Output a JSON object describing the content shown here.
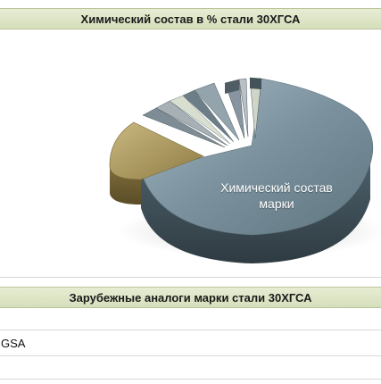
{
  "sections": {
    "composition_title": "Химический состав в % стали 30ХГСА",
    "analogs_title": "Зарубежные аналоги марки стали 30ХГСА"
  },
  "chart_data": {
    "type": "pie",
    "title": "Химический состав в % стали 30ХГСА",
    "slice_label": "Химический состав марки",
    "slice_label_line1": "Химический состав",
    "slice_label_line2": "марки",
    "colors": {
      "main": "#6f8794",
      "olive": "#a9955a",
      "gray_dark": "#5a6e7a",
      "gray_light": "#8d9ba3",
      "stripe_pale": "#d9dfd0"
    }
  },
  "analogs": {
    "rows": [
      "GSA"
    ]
  }
}
